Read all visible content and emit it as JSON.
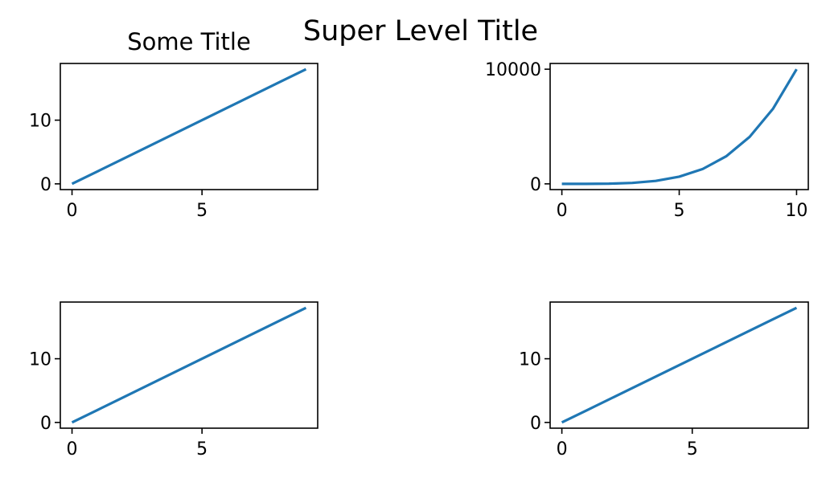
{
  "figure": {
    "suptitle": "Super Level Title",
    "line_color": "#1f77b4"
  },
  "chart_data": [
    {
      "type": "line",
      "title": "Some Title",
      "xlabel": "",
      "ylabel": "",
      "xlim": [
        -0.45,
        9.45
      ],
      "ylim": [
        -0.9,
        18.9
      ],
      "xticks": [
        0,
        5
      ],
      "yticks": [
        0,
        10
      ],
      "grid": false,
      "series": [
        {
          "x": [
            0,
            1,
            2,
            3,
            4,
            5,
            6,
            7,
            8,
            9
          ],
          "values": [
            0,
            2,
            4,
            6,
            8,
            10,
            12,
            14,
            16,
            18
          ]
        }
      ]
    },
    {
      "type": "line",
      "title": "",
      "xlabel": "",
      "ylabel": "",
      "xlim": [
        -0.5,
        10.5
      ],
      "ylim": [
        -500,
        10500
      ],
      "xticks": [
        0,
        5,
        10
      ],
      "yticks": [
        0,
        10000
      ],
      "grid": false,
      "series": [
        {
          "x": [
            0,
            1,
            2,
            3,
            4,
            5,
            6,
            7,
            8,
            9,
            10
          ],
          "values": [
            0,
            1,
            16,
            81,
            256,
            625,
            1296,
            2401,
            4096,
            6561,
            10000
          ]
        }
      ]
    },
    {
      "type": "line",
      "title": "",
      "xlabel": "",
      "ylabel": "",
      "xlim": [
        -0.45,
        9.45
      ],
      "ylim": [
        -0.9,
        18.9
      ],
      "xticks": [
        0,
        5
      ],
      "yticks": [
        0,
        10
      ],
      "grid": false,
      "series": [
        {
          "x": [
            0,
            1,
            2,
            3,
            4,
            5,
            6,
            7,
            8,
            9
          ],
          "values": [
            0,
            2,
            4,
            6,
            8,
            10,
            12,
            14,
            16,
            18
          ]
        }
      ]
    },
    {
      "type": "line",
      "title": "",
      "xlabel": "",
      "ylabel": "",
      "xlim": [
        -0.45,
        9.45
      ],
      "ylim": [
        -0.9,
        18.9
      ],
      "xticks": [
        0,
        5
      ],
      "yticks": [
        0,
        10
      ],
      "grid": false,
      "series": [
        {
          "x": [
            0,
            1,
            2,
            3,
            4,
            5,
            6,
            7,
            8,
            9
          ],
          "values": [
            0,
            2,
            4,
            6,
            8,
            10,
            12,
            14,
            16,
            18
          ]
        }
      ]
    }
  ]
}
